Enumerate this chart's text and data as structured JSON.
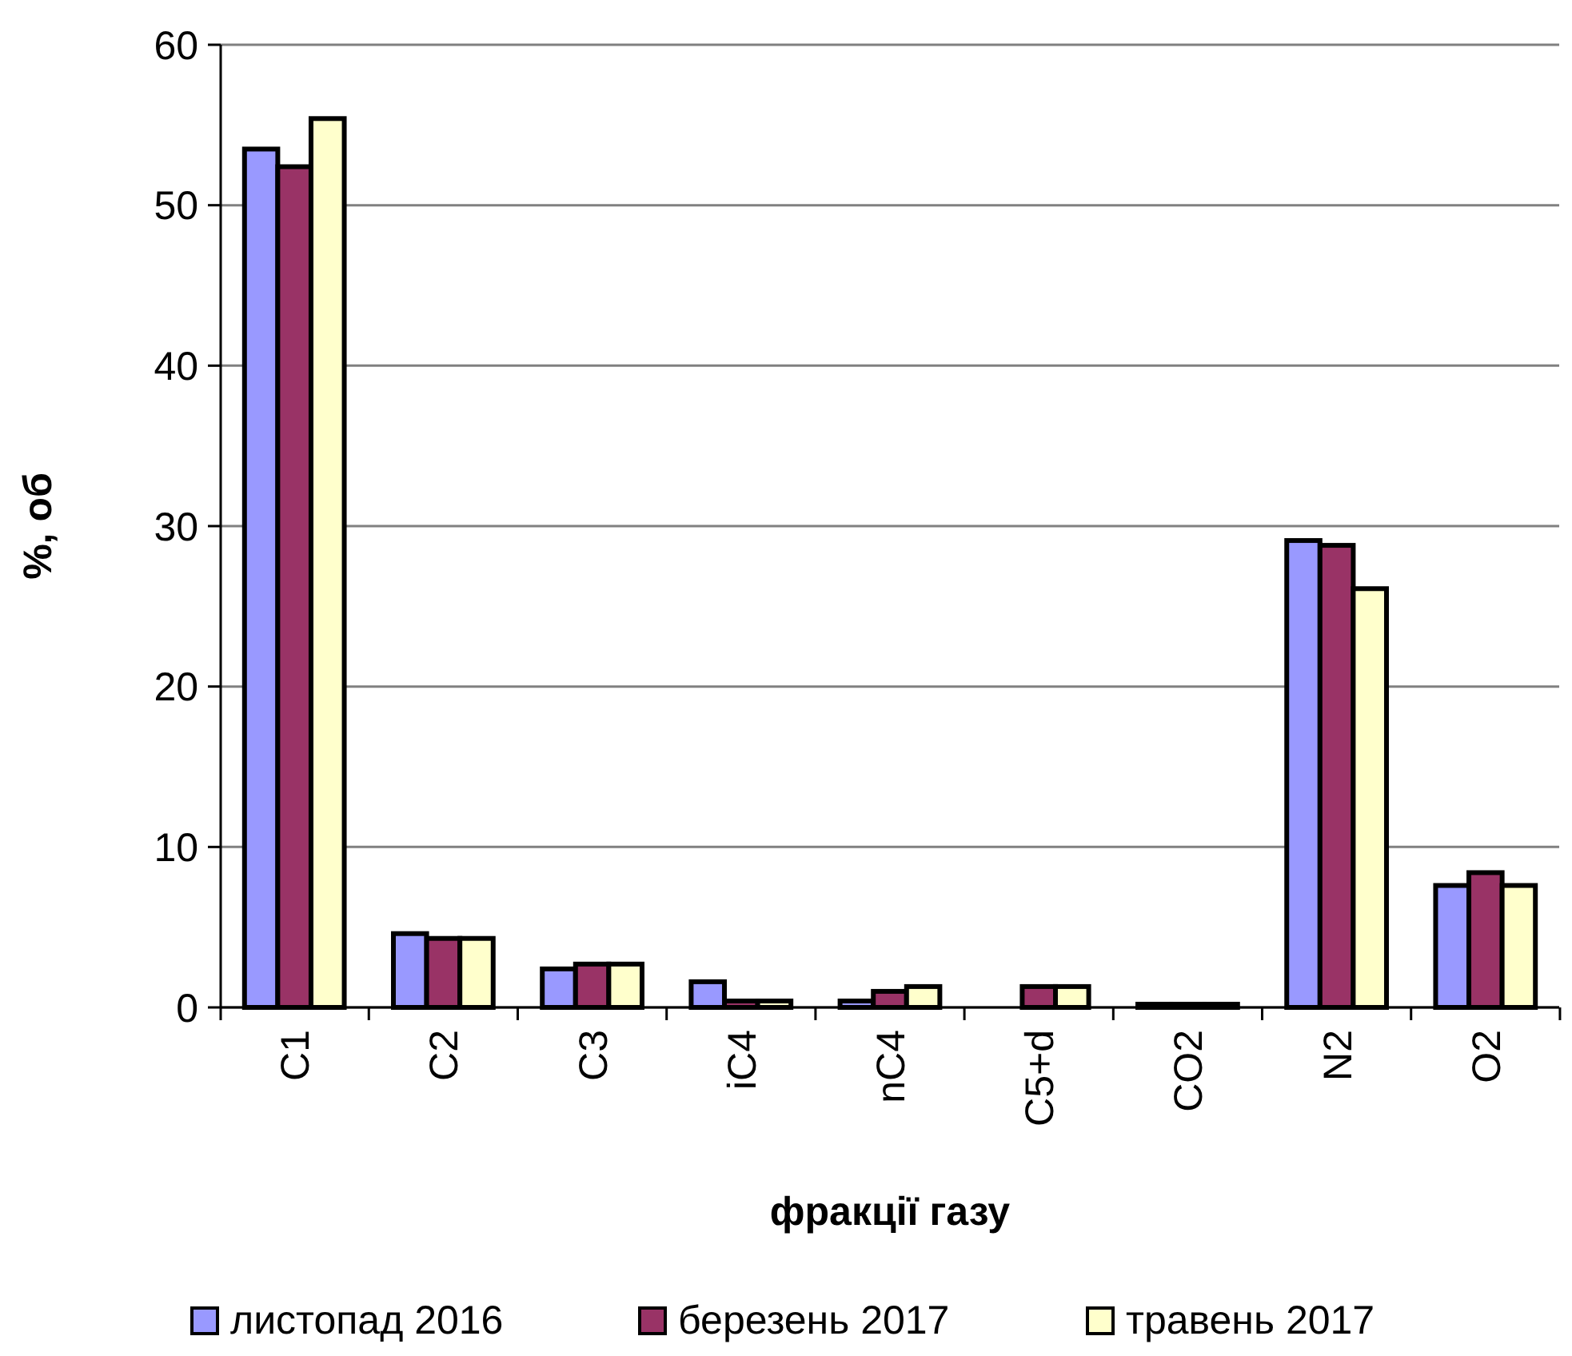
{
  "chart_data": {
    "type": "bar",
    "xlabel": "фракції газу",
    "ylabel": "%, об",
    "categories": [
      "C1",
      "C2",
      "C3",
      "iC4",
      "nC4",
      "C5+d",
      "CO2",
      "N2",
      "O2"
    ],
    "series": [
      {
        "name": "листопад 2016",
        "color": "#9999ff",
        "values": [
          53.5,
          4.6,
          2.4,
          1.6,
          0.4,
          null,
          0.2,
          29.1,
          7.6
        ]
      },
      {
        "name": "березень 2017",
        "color": "#993366",
        "values": [
          52.4,
          4.3,
          2.7,
          0.4,
          1.0,
          1.3,
          0.2,
          28.8,
          8.4
        ]
      },
      {
        "name": "травень 2017",
        "color": "#ffffcc",
        "values": [
          55.4,
          4.3,
          2.7,
          0.4,
          1.3,
          1.3,
          0.2,
          26.1,
          7.6
        ]
      }
    ],
    "ylim": [
      0,
      60
    ],
    "yticks": [
      0,
      10,
      20,
      30,
      40,
      50,
      60
    ],
    "grid": "y",
    "legend": "bottom"
  }
}
